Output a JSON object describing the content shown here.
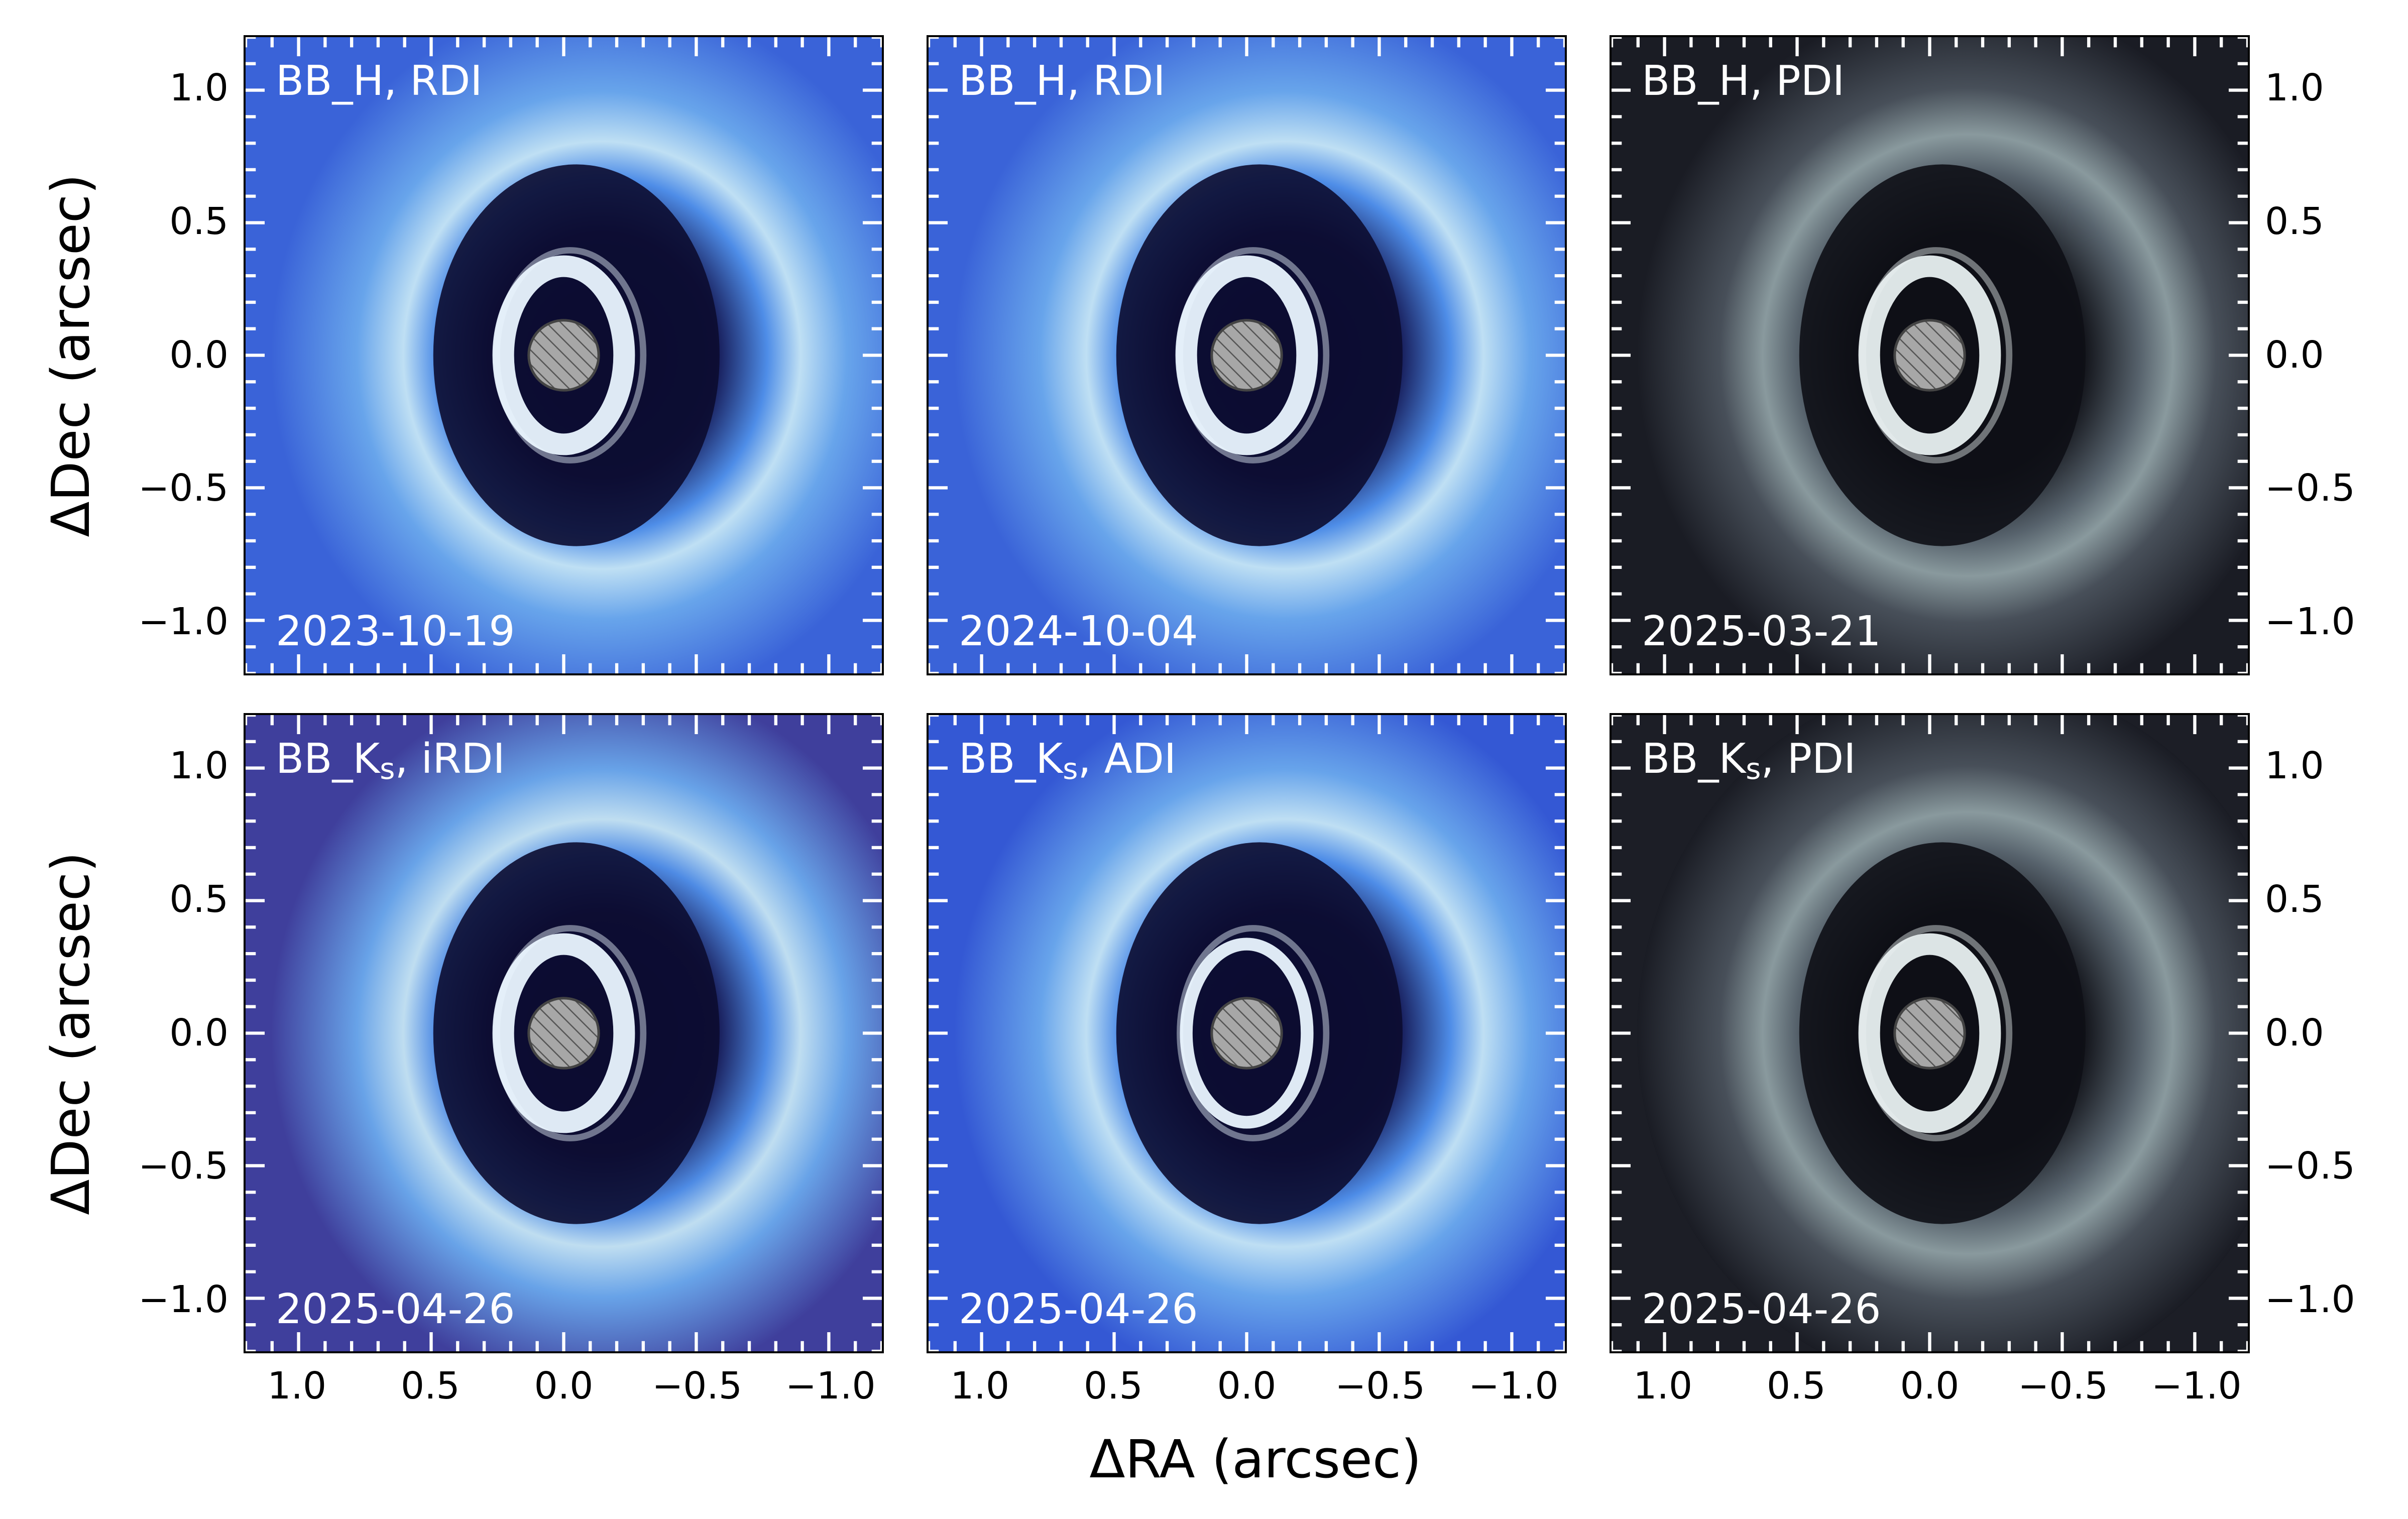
{
  "figure": {
    "xlabel": "ΔRA (arcsec)",
    "ylabel": "ΔDec (arcsec)",
    "x_ticks": [
      "1.0",
      "0.5",
      "0.0",
      "−0.5",
      "−1.0"
    ],
    "y_ticks": [
      "1.0",
      "0.5",
      "0.0",
      "−0.5",
      "−1.0"
    ],
    "x_tick_values": [
      1.0,
      0.5,
      0.0,
      -0.5,
      -1.0
    ],
    "y_tick_values": [
      1.0,
      0.5,
      0.0,
      -0.5,
      -1.0
    ],
    "xlim": [
      1.2,
      -1.2
    ],
    "ylim": [
      -1.2,
      1.2
    ]
  },
  "panels": [
    {
      "band": "BB_H",
      "band_sub": "",
      "method": "RDI",
      "date": "2023-10-19",
      "colormap": "blue",
      "bg": "#3a63d8"
    },
    {
      "band": "BB_H",
      "band_sub": "",
      "method": "RDI",
      "date": "2024-10-04",
      "colormap": "blue",
      "bg": "#3a63d8"
    },
    {
      "band": "BB_H",
      "band_sub": "",
      "method": "PDI",
      "date": "2025-03-21",
      "colormap": "bone",
      "bg": "#1a1c24"
    },
    {
      "band": "BB_K",
      "band_sub": "s",
      "method": "iRDI",
      "date": "2025-04-26",
      "colormap": "blue",
      "bg": "#3f3f9c"
    },
    {
      "band": "BB_K",
      "band_sub": "s",
      "method": "ADI",
      "date": "2025-04-26",
      "colormap": "blue",
      "bg": "#3458d4"
    },
    {
      "band": "BB_K",
      "band_sub": "s",
      "method": "PDI",
      "date": "2025-04-26",
      "colormap": "bone",
      "bg": "#1c1e26"
    }
  ]
}
